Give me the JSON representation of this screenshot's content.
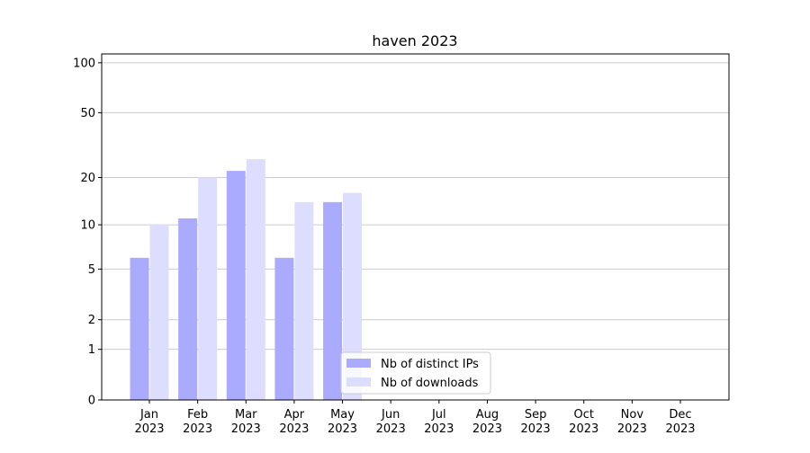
{
  "chart_data": {
    "type": "bar",
    "title": "haven 2023",
    "categories": [
      "Jan 2023",
      "Feb 2023",
      "Mar 2023",
      "Apr 2023",
      "May 2023",
      "Jun 2023",
      "Jul 2023",
      "Aug 2023",
      "Sep 2023",
      "Oct 2023",
      "Nov 2023",
      "Dec 2023"
    ],
    "series": [
      {
        "name": "Nb of distinct IPs",
        "color": "#aaaaff",
        "values": [
          6,
          11,
          22,
          6,
          14,
          null,
          null,
          null,
          null,
          null,
          null,
          null
        ]
      },
      {
        "name": "Nb of downloads",
        "color": "#ddddff",
        "values": [
          10,
          20,
          26,
          14,
          16,
          null,
          null,
          null,
          null,
          null,
          null,
          null
        ]
      }
    ],
    "scale": "log1p",
    "ylim": [
      0,
      113
    ],
    "yticks": [
      0,
      1,
      2,
      5,
      10,
      20,
      50,
      100
    ],
    "grid": true,
    "legend": "lower center"
  }
}
